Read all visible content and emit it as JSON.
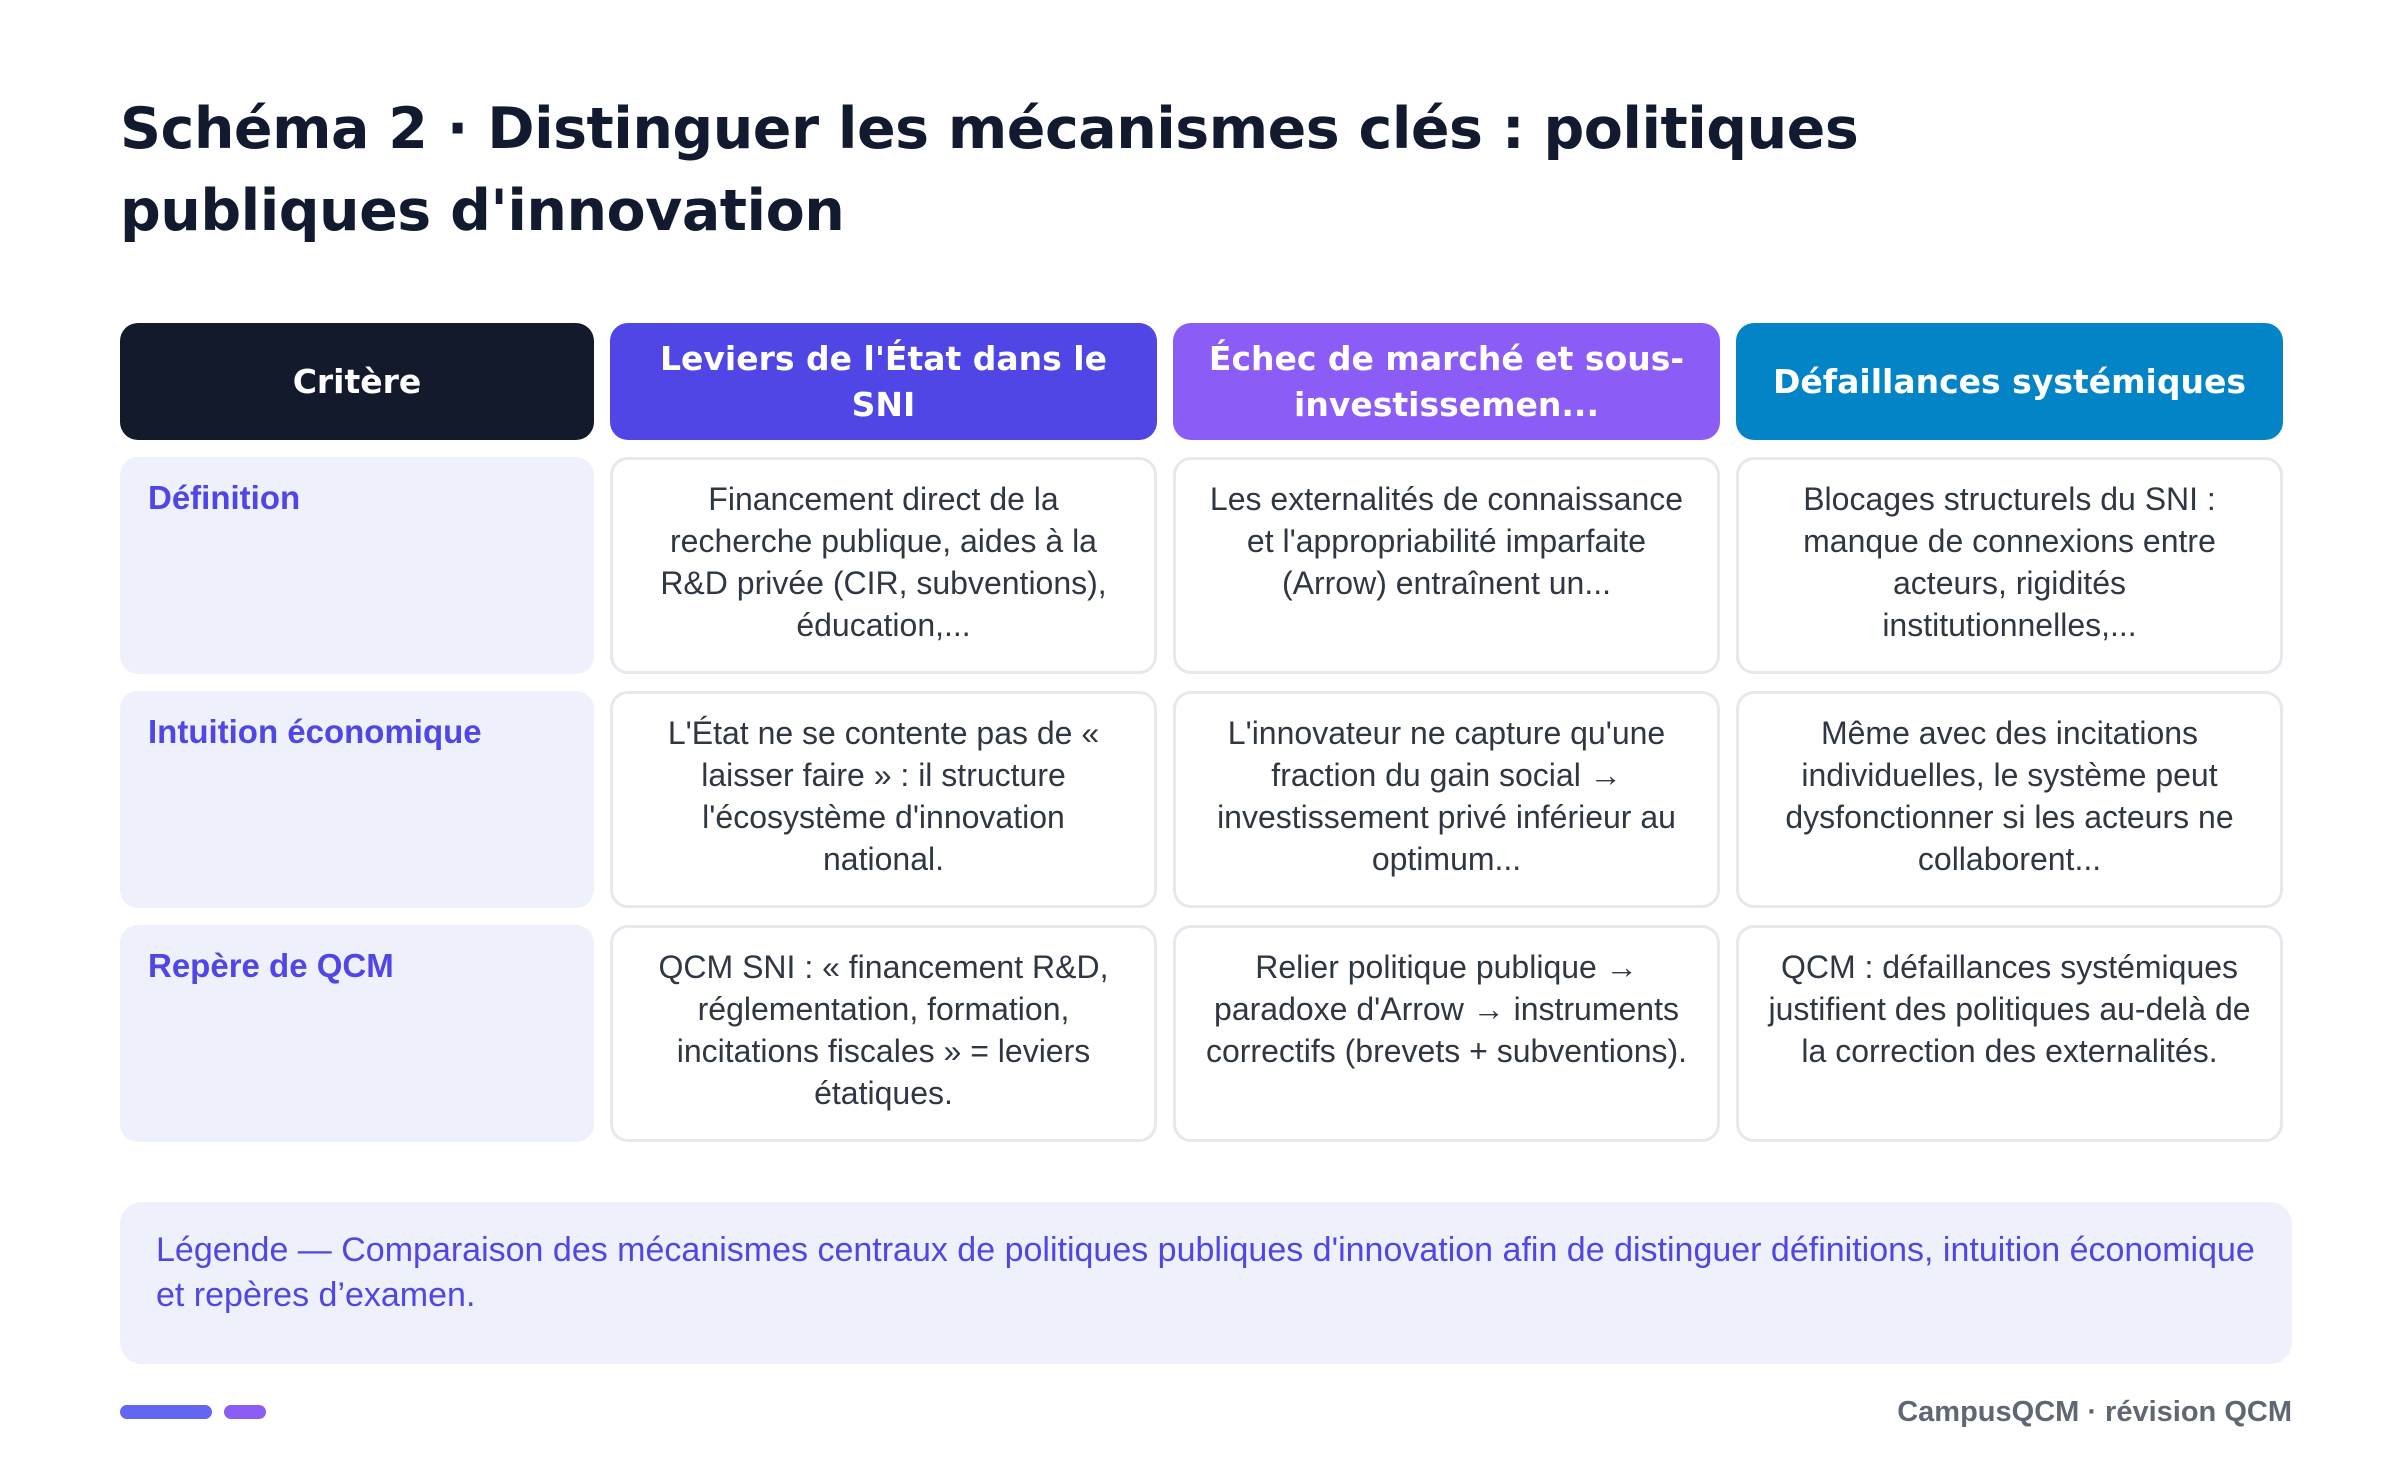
{
  "title": "Schéma 2 · Distinguer les mécanismes clés : politiques publiques d'innovation",
  "table": {
    "headers": [
      "Critère",
      "Leviers de l'État dans le SNI",
      "Échec de marché et sous-investissemen...",
      "Défaillances systémiques"
    ],
    "rows": [
      {
        "label": "Définition",
        "cells": [
          "Financement direct de la recherche publique, aides à la R&D privée (CIR, subventions), éducation,...",
          "Les externalités de connaissance et l'appropriabilité imparfaite (Arrow) entraînent un...",
          "Blocages structurels du SNI : manque de connexions entre acteurs, rigidités institutionnelles,..."
        ]
      },
      {
        "label": "Intuition économique",
        "cells": [
          "L'État ne se contente pas de « laisser faire » : il structure l'écosystème d'innovation national.",
          "L'innovateur ne capture qu'une fraction du gain social → investissement privé inférieur au optimum...",
          "Même avec des incitations individuelles, le système peut dysfonctionner si les acteurs ne collaborent..."
        ]
      },
      {
        "label": "Repère de QCM",
        "cells": [
          "QCM SNI : « financement R&D, réglementation, formation, incitations fiscales » = leviers étatiques.",
          "Relier politique publique → paradoxe d'Arrow → instruments correctifs (brevets + subventions).",
          "QCM : défaillances systémiques justifient des politiques au-delà de la correction des externalités."
        ]
      }
    ]
  },
  "legend": "Légende — Comparaison des mécanismes centraux de politiques publiques d'innovation afin de distinguer définitions, intuition économique et repères d’examen.",
  "footer": "CampusQCM · révision QCM",
  "colors": {
    "criteria_header": "#121a2b",
    "column1_header": "#4f46e5",
    "column2_header": "#8b5cf6",
    "column3_header": "#0284c7",
    "row_label_bg": "#eef0fc",
    "accent_text": "#4f46e5"
  }
}
